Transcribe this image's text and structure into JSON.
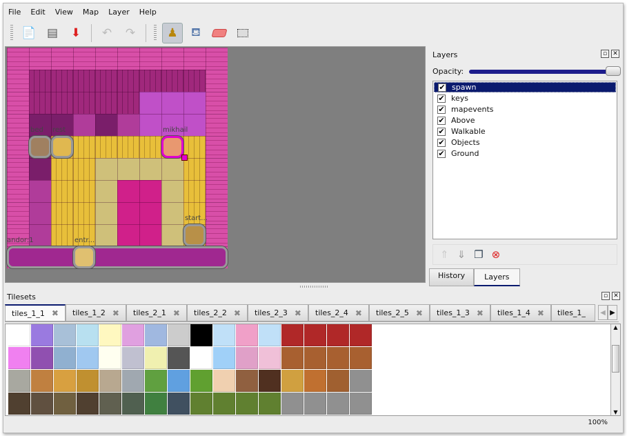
{
  "menu": [
    "File",
    "Edit",
    "View",
    "Map",
    "Layer",
    "Help"
  ],
  "toolbar": {
    "icons": [
      "new-icon",
      "open-icon",
      "save-icon",
      "undo-icon",
      "redo-icon",
      "stamp-brush-icon",
      "bucket-fill-icon",
      "eraser-icon",
      "rect-select-icon"
    ],
    "active": "stamp-brush-icon"
  },
  "map": {
    "objects": [
      {
        "name": "bed",
        "selected": false
      },
      {
        "name": "rest",
        "selected": false
      },
      {
        "name": "mikhail",
        "selected": true
      },
      {
        "name": "start...",
        "selected": false
      },
      {
        "name": "andor:1",
        "selected": false
      },
      {
        "name": "entr...",
        "selected": false
      }
    ]
  },
  "layers_panel": {
    "title": "Layers",
    "opacity_label": "Opacity:",
    "opacity": 1.0,
    "layers": [
      {
        "name": "spawn",
        "visible": true,
        "selected": true
      },
      {
        "name": "keys",
        "visible": true
      },
      {
        "name": "mapevents",
        "visible": true
      },
      {
        "name": "Above",
        "visible": true
      },
      {
        "name": "Walkable",
        "visible": true
      },
      {
        "name": "Objects",
        "visible": true
      },
      {
        "name": "Ground",
        "visible": true
      }
    ],
    "buttons": [
      "move-layer-up-icon",
      "move-layer-down-icon",
      "duplicate-layer-icon",
      "delete-layer-icon"
    ],
    "tabs": [
      "History",
      "Layers"
    ],
    "active_tab": "Layers"
  },
  "tilesets": {
    "title": "Tilesets",
    "tabs": [
      "tiles_1_1",
      "tiles_1_2",
      "tiles_2_1",
      "tiles_2_2",
      "tiles_2_3",
      "tiles_2_4",
      "tiles_2_5",
      "tiles_1_3",
      "tiles_1_4",
      "tiles_1_"
    ],
    "active": "tiles_1_1"
  },
  "status": {
    "zoom": "100%"
  },
  "colors": {
    "accent": "#0a1a6e",
    "selection": "#e000d0"
  }
}
